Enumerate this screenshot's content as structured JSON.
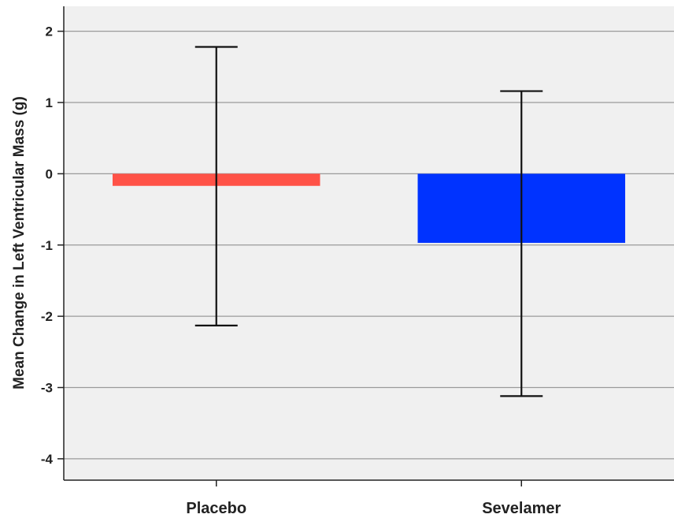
{
  "chart_data": {
    "type": "bar",
    "categories": [
      "Placebo",
      "Sevelamer"
    ],
    "values": [
      -0.17,
      -0.97
    ],
    "error_bars": [
      {
        "low": -2.13,
        "high": 1.78
      },
      {
        "low": -3.12,
        "high": 1.16
      }
    ],
    "bar_colors": [
      "#ff5247",
      "#0033ff"
    ],
    "ylabel": "Mean Change in Left Ventricular Mass (g)",
    "ylim": [
      -4.3,
      2.35
    ],
    "yticks": [
      2,
      1,
      0,
      -1,
      -2,
      -3,
      -4
    ],
    "ytick_labels": [
      "2",
      "1",
      "0",
      "-1",
      "-2",
      "-3",
      "-4"
    ],
    "grid": true,
    "plot_background": "#f0f0f0",
    "grid_color": "#9a9a9a"
  }
}
